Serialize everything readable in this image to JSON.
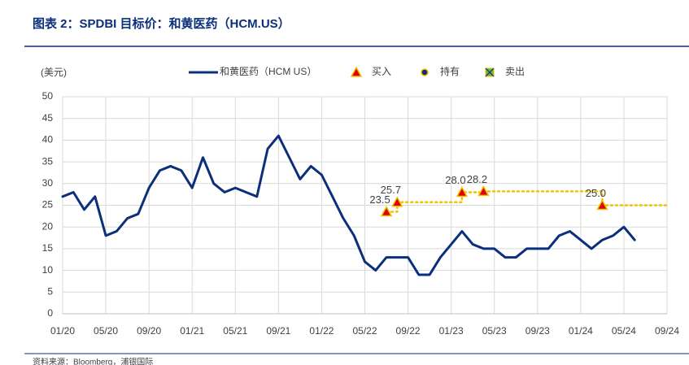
{
  "chart_data": {
    "type": "line",
    "title": "图表 2：SPDBI 目标价：和黄医药（HCM.US）",
    "y_label": "(美元)",
    "source": "资料来源：Bloomberg，浦银国际",
    "xlim": [
      "01/20",
      "09/24"
    ],
    "xticks": [
      "01/20",
      "05/20",
      "09/20",
      "01/21",
      "05/21",
      "09/21",
      "01/22",
      "05/22",
      "09/22",
      "01/23",
      "05/23",
      "09/23",
      "01/24",
      "05/24",
      "09/24"
    ],
    "ylim": [
      0,
      50
    ],
    "yticks": [
      0,
      5,
      10,
      15,
      20,
      25,
      30,
      35,
      40,
      45,
      50
    ],
    "grid": true,
    "series": [
      {
        "name": "和黄医药（HCM US）",
        "color": "#0b2f7a",
        "style": "line",
        "x": [
          "01/20",
          "02/20",
          "03/20",
          "04/20",
          "05/20",
          "06/20",
          "07/20",
          "08/20",
          "09/20",
          "10/20",
          "11/20",
          "12/20",
          "01/21",
          "02/21",
          "03/21",
          "04/21",
          "05/21",
          "06/21",
          "07/21",
          "08/21",
          "09/21",
          "10/21",
          "11/21",
          "12/21",
          "01/22",
          "02/22",
          "03/22",
          "04/22",
          "05/22",
          "06/22",
          "07/22",
          "08/22",
          "09/22",
          "10/22",
          "11/22",
          "12/22",
          "01/23",
          "02/23",
          "03/23",
          "04/23",
          "05/23",
          "06/23",
          "07/23",
          "08/23",
          "09/23",
          "10/23",
          "11/23",
          "12/23",
          "01/24",
          "02/24",
          "03/24",
          "04/24",
          "05/24",
          "06/24"
        ],
        "values": [
          27,
          28,
          24,
          27,
          18,
          19,
          22,
          23,
          29,
          33,
          34,
          33,
          29,
          36,
          30,
          28,
          29,
          28,
          27,
          38,
          41,
          36,
          31,
          34,
          32,
          27,
          22,
          18,
          12,
          10,
          13,
          13,
          13,
          9,
          9,
          13,
          16,
          19,
          16,
          15,
          15,
          13,
          13,
          15,
          15,
          15,
          18,
          19,
          17,
          15,
          17,
          18,
          20,
          17
        ]
      },
      {
        "color": "#f2c200",
        "style": "dotted",
        "x": [
          "07/22",
          "08/22",
          "08/22",
          "02/23",
          "02/23",
          "04/23",
          "04/23",
          "03/24",
          "03/24",
          "09/24"
        ],
        "values": [
          23.5,
          23.5,
          25.7,
          25.7,
          28.0,
          28.0,
          28.2,
          28.2,
          25.0,
          25.0
        ]
      },
      {
        "name": "买入",
        "color": "#e00000",
        "style": "triangle",
        "x": [
          "07/22",
          "08/22",
          "02/23",
          "04/23",
          "03/24"
        ],
        "values": [
          23.5,
          25.7,
          28.0,
          28.2,
          25.0
        ],
        "value_labels": [
          "23.5",
          "25.7",
          "28.0",
          "28.2",
          "25.0"
        ]
      },
      {
        "name": "持有",
        "color": "#0b2f7a",
        "style": "circle",
        "x": [],
        "values": []
      },
      {
        "name": "卖出",
        "color": "#6fb43f",
        "style": "square",
        "x": [],
        "values": []
      }
    ]
  }
}
